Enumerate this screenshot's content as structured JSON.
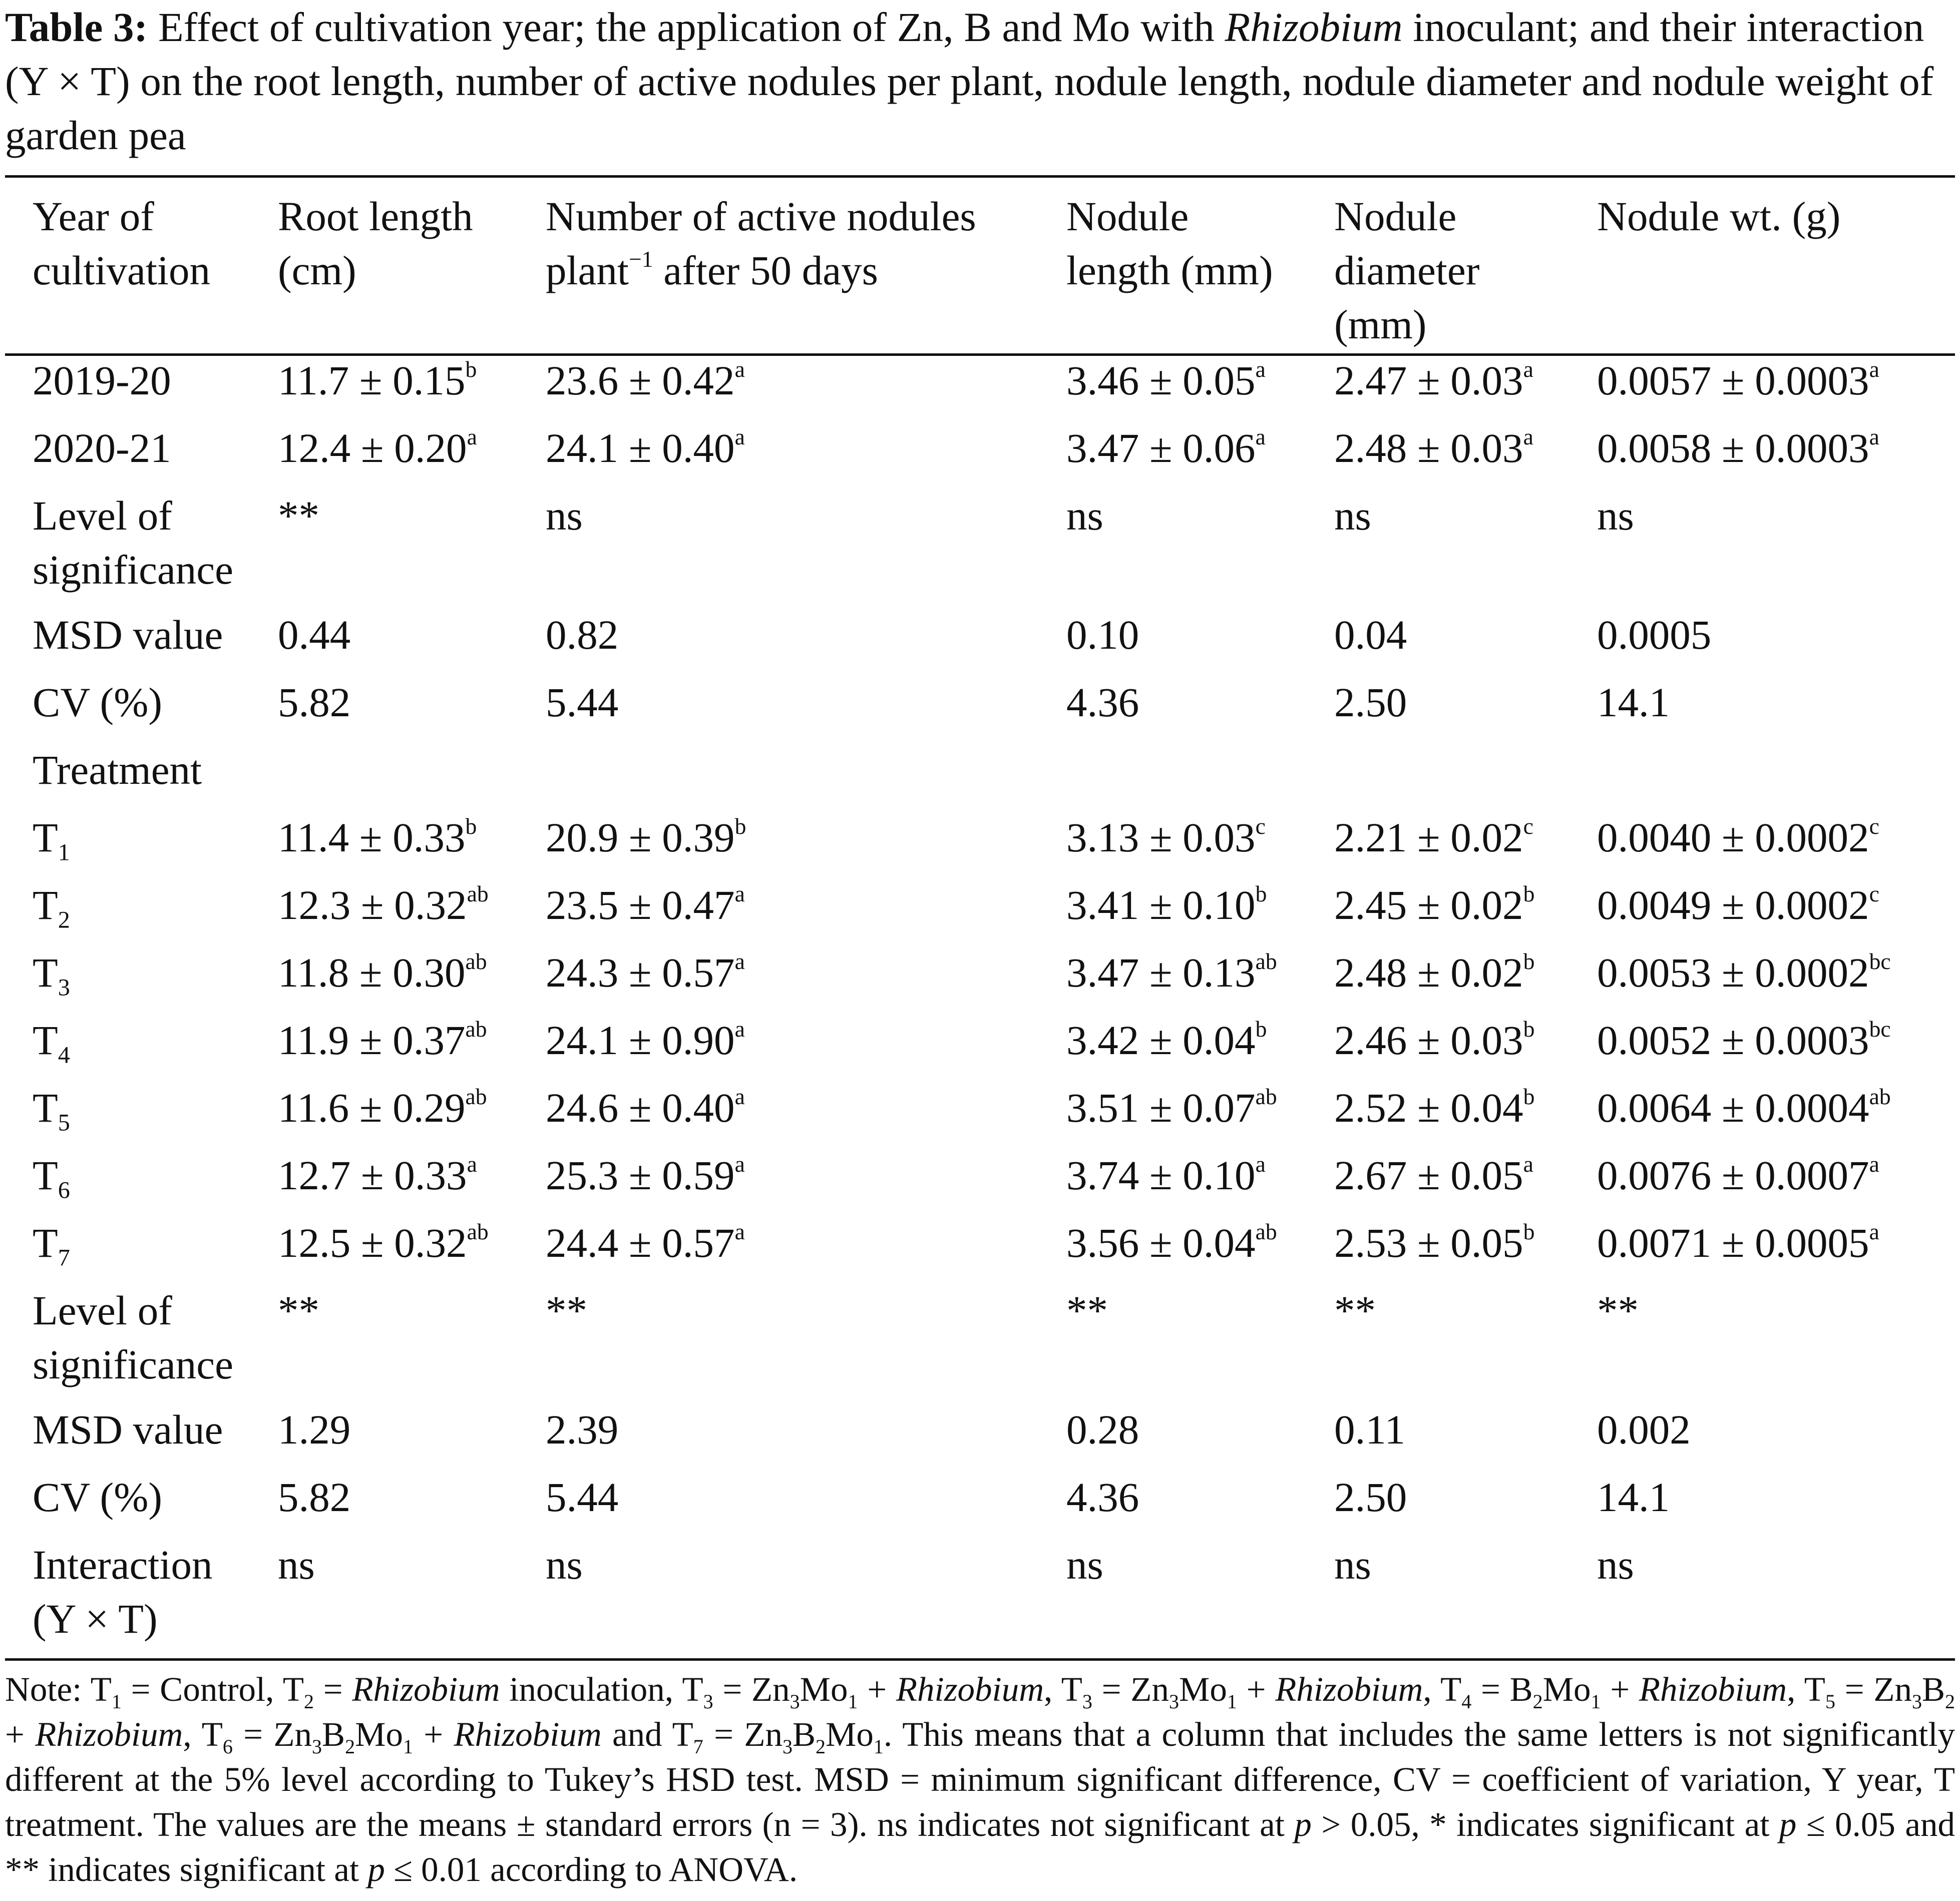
{
  "caption": {
    "label": "Table 3:",
    "text_part1": " Effect of cultivation year; the application of Zn, B and Mo with ",
    "text_italic": "Rhizobium",
    "text_part2": " inoculant; and their interaction (Y × T) on the root length, number of active nodules per plant, nodule length, nodule diameter and nodule weight of garden pea"
  },
  "header": {
    "col0_line1": "Year of",
    "col0_line2": "cultivation",
    "col1_line1": "Root length",
    "col1_line2": "(cm)",
    "col2_line1": "Number of active nodules",
    "col2_line2_pre": "plant",
    "col2_line2_sup": "−1",
    "col2_line2_post": " after 50 days",
    "col3_line1": "Nodule",
    "col3_line2": "length (mm)",
    "col4_line1": "Nodule",
    "col4_line2": "diameter",
    "col4_line3": "(mm)",
    "col5_line1": "Nodule wt. (g)"
  },
  "year_rows": [
    {
      "label": "2019-20",
      "c1": "11.7 ± 0.15",
      "s1": "b",
      "c2": "23.6 ± 0.42",
      "s2": "a",
      "c3": "3.46 ± 0.05",
      "s3": "a",
      "c4": "2.47 ± 0.03",
      "s4": "a",
      "c5": "0.0057 ± 0.0003",
      "s5": "a"
    },
    {
      "label": "2020-21",
      "c1": "12.4 ± 0.20",
      "s1": "a",
      "c2": "24.1 ± 0.40",
      "s2": "a",
      "c3": "3.47 ± 0.06",
      "s3": "a",
      "c4": "2.48 ± 0.03",
      "s4": "a",
      "c5": "0.0058 ± 0.0003",
      "s5": "a"
    }
  ],
  "year_stats": {
    "sig_label_line1": "Level of",
    "sig_label_line2": "significance",
    "sig": [
      "**",
      "ns",
      "ns",
      "ns",
      "ns"
    ],
    "msd_label": "MSD value",
    "msd": [
      "0.44",
      "0.82",
      "0.10",
      "0.04",
      "0.0005"
    ],
    "cv_label": "CV (%)",
    "cv": [
      "5.82",
      "5.44",
      "4.36",
      "2.50",
      "14.1"
    ]
  },
  "treatment_heading": "Treatment",
  "treatment_rows": [
    {
      "t": "T",
      "sub": "1",
      "c1": "11.4 ± 0.33",
      "s1": "b",
      "c2": "20.9 ± 0.39",
      "s2": "b",
      "c3": "3.13 ± 0.03",
      "s3": "c",
      "c4": "2.21 ± 0.02",
      "s4": "c",
      "c5": "0.0040 ± 0.0002",
      "s5": "c"
    },
    {
      "t": "T",
      "sub": "2",
      "c1": "12.3 ± 0.32",
      "s1": "ab",
      "c2": "23.5 ± 0.47",
      "s2": "a",
      "c3": "3.41 ± 0.10",
      "s3": "b",
      "c4": "2.45 ± 0.02",
      "s4": "b",
      "c5": "0.0049 ± 0.0002",
      "s5": "c"
    },
    {
      "t": "T",
      "sub": "3",
      "c1": "11.8 ± 0.30",
      "s1": "ab",
      "c2": "24.3 ± 0.57",
      "s2": "a",
      "c3": "3.47 ± 0.13",
      "s3": "ab",
      "c4": "2.48 ± 0.02",
      "s4": "b",
      "c5": "0.0053 ± 0.0002",
      "s5": "bc"
    },
    {
      "t": "T",
      "sub": "4",
      "c1": "11.9 ± 0.37",
      "s1": "ab",
      "c2": "24.1 ± 0.90",
      "s2": "a",
      "c3": "3.42 ± 0.04",
      "s3": "b",
      "c4": "2.46 ± 0.03",
      "s4": "b",
      "c5": "0.0052 ± 0.0003",
      "s5": "bc"
    },
    {
      "t": "T",
      "sub": "5",
      "c1": "11.6 ± 0.29",
      "s1": "ab",
      "c2": "24.6 ± 0.40",
      "s2": "a",
      "c3": "3.51 ± 0.07",
      "s3": "ab",
      "c4": "2.52 ± 0.04",
      "s4": "b",
      "c5": "0.0064 ± 0.0004",
      "s5": "ab"
    },
    {
      "t": "T",
      "sub": "6",
      "c1": "12.7 ± 0.33",
      "s1": "a",
      "c2": "25.3 ± 0.59",
      "s2": "a",
      "c3": "3.74 ± 0.10",
      "s3": "a",
      "c4": "2.67 ± 0.05",
      "s4": "a",
      "c5": "0.0076 ± 0.0007",
      "s5": "a"
    },
    {
      "t": "T",
      "sub": "7",
      "c1": "12.5 ± 0.32",
      "s1": "ab",
      "c2": "24.4 ± 0.57",
      "s2": "a",
      "c3": "3.56 ± 0.04",
      "s3": "ab",
      "c4": "2.53 ± 0.05",
      "s4": "b",
      "c5": "0.0071 ± 0.0005",
      "s5": "a"
    }
  ],
  "treatment_stats": {
    "sig_label_line1": "Level of",
    "sig_label_line2": "significance",
    "sig": [
      "**",
      "**",
      "**",
      "**",
      "**"
    ],
    "msd_label": "MSD value",
    "msd": [
      "1.29",
      "2.39",
      "0.28",
      "0.11",
      "0.002"
    ],
    "cv_label": "CV (%)",
    "cv": [
      "5.82",
      "5.44",
      "4.36",
      "2.50",
      "14.1"
    ],
    "interaction_line1": "Interaction",
    "interaction_line2": "(Y × T)",
    "interaction": [
      "ns",
      "ns",
      "ns",
      "ns",
      "ns"
    ]
  },
  "note": {
    "p1": "Note: T",
    "p1_sub": "1",
    "p2": " = Control, T",
    "p2_sub": "2",
    "p3": " = ",
    "p3_it": "Rhizobium",
    "p4": " inoculation, T",
    "p4_sub": "3",
    "p5": " = Zn",
    "p5_sub": "3",
    "p6": "Mo",
    "p6_sub": "1",
    "p7": " + ",
    "p7_it": "Rhizobium",
    "p8": ", T",
    "p8_sub": "3",
    "p9": " = Zn",
    "p9_sub": "3",
    "p10": "Mo",
    "p10_sub": "1",
    "p11": " + ",
    "p11_it": "Rhizobium",
    "p12": ", T",
    "p12_sub": "4",
    "p13": " = B",
    "p13_sub": "2",
    "p14": "Mo",
    "p14_sub": "1",
    "p15": " + ",
    "p15_it": "Rhizobium",
    "p16": ", T",
    "p16_sub": "5",
    "p17": " = Zn",
    "p17_sub": "3",
    "p18": "B",
    "p18_sub": "2",
    "p19": " + ",
    "p19_it": "Rhizobium",
    "p20": ", T",
    "p20_sub": "6",
    "p21": " = Zn",
    "p21_sub": "3",
    "p22": "B",
    "p22_sub": "2",
    "p23": "Mo",
    "p23_sub": "1",
    "p24": " + ",
    "p24_it": "Rhizobium",
    "p25": " and T",
    "p25_sub": "7",
    "p26": " = Zn",
    "p26_sub": "3",
    "p27": "B",
    "p27_sub": "2",
    "p28": "Mo",
    "p28_sub": "1",
    "p29": ". This means that a column that includes the same letters is not significantly different at the 5% level according to Tukey’s HSD test. MSD = minimum significant difference, CV = coefficient of variation, Y year, T treatment. The values are the means ± standard errors (n = 3). ns indicates not significant at ",
    "p29_it": "p",
    "p30": " > 0.05, * indicates significant at ",
    "p30_it": "p",
    "p31": " ≤ 0.05 and ** indicates significant at ",
    "p31_it": "p",
    "p32": " ≤ 0.01 according to ANOVA."
  }
}
